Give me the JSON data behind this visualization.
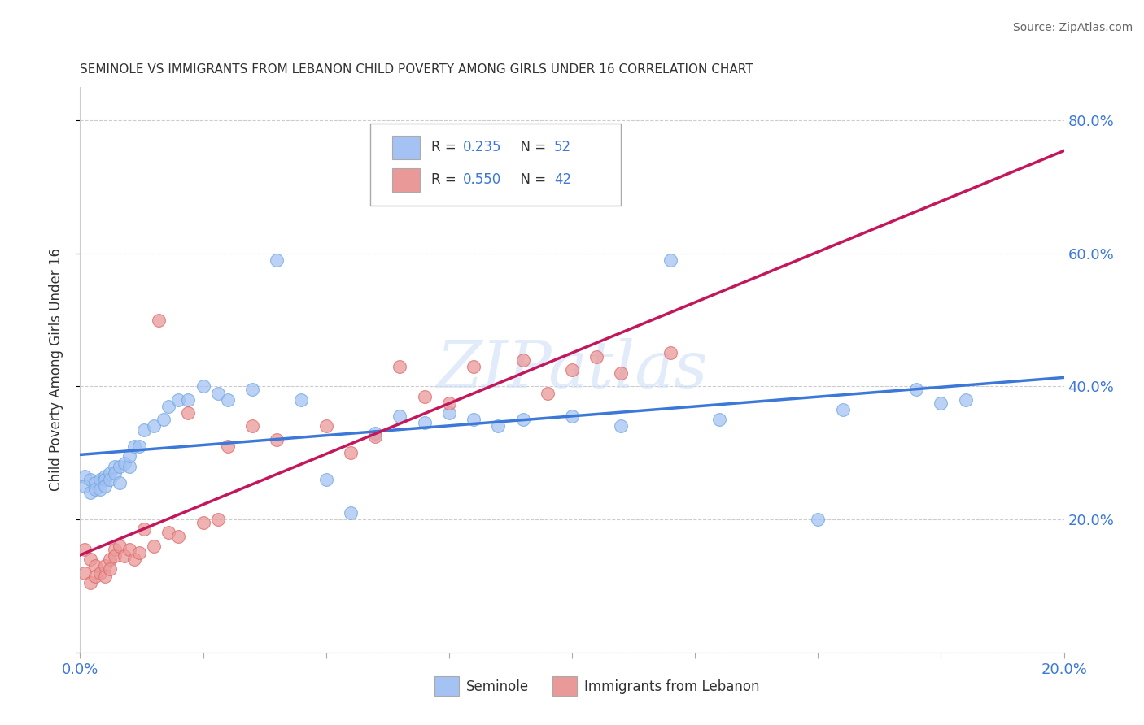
{
  "title": "SEMINOLE VS IMMIGRANTS FROM LEBANON CHILD POVERTY AMONG GIRLS UNDER 16 CORRELATION CHART",
  "source": "Source: ZipAtlas.com",
  "ylabel": "Child Poverty Among Girls Under 16",
  "xlim": [
    0.0,
    0.2
  ],
  "ylim": [
    0.0,
    0.85
  ],
  "xtick_positions": [
    0.0,
    0.025,
    0.05,
    0.075,
    0.1,
    0.125,
    0.15,
    0.175,
    0.2
  ],
  "xtick_labels": [
    "0.0%",
    "",
    "",
    "",
    "",
    "",
    "",
    "",
    "20.0%"
  ],
  "ytick_positions": [
    0.0,
    0.2,
    0.4,
    0.6,
    0.8
  ],
  "ytick_labels": [
    "",
    "20.0%",
    "40.0%",
    "60.0%",
    "80.0%"
  ],
  "seminole_color": "#a4c2f4",
  "lebanon_color": "#ea9999",
  "trendline_seminole_color": "#3c78d8",
  "trendline_lebanon_color": "#c2185b",
  "watermark_text": "ZIPatlas",
  "seminole_x": [
    0.001,
    0.001,
    0.002,
    0.002,
    0.003,
    0.003,
    0.004,
    0.004,
    0.005,
    0.005,
    0.005,
    0.006,
    0.006,
    0.007,
    0.007,
    0.008,
    0.008,
    0.009,
    0.01,
    0.01,
    0.011,
    0.012,
    0.013,
    0.015,
    0.017,
    0.018,
    0.02,
    0.022,
    0.025,
    0.028,
    0.03,
    0.035,
    0.04,
    0.045,
    0.05,
    0.055,
    0.06,
    0.065,
    0.07,
    0.075,
    0.08,
    0.085,
    0.09,
    0.1,
    0.11,
    0.12,
    0.13,
    0.15,
    0.155,
    0.17,
    0.175,
    0.18
  ],
  "seminole_y": [
    0.265,
    0.25,
    0.26,
    0.24,
    0.255,
    0.245,
    0.26,
    0.245,
    0.265,
    0.26,
    0.25,
    0.27,
    0.26,
    0.28,
    0.27,
    0.28,
    0.255,
    0.285,
    0.28,
    0.295,
    0.31,
    0.31,
    0.335,
    0.34,
    0.35,
    0.37,
    0.38,
    0.38,
    0.4,
    0.39,
    0.38,
    0.395,
    0.59,
    0.38,
    0.26,
    0.21,
    0.33,
    0.355,
    0.345,
    0.36,
    0.35,
    0.34,
    0.35,
    0.355,
    0.34,
    0.59,
    0.35,
    0.2,
    0.365,
    0.395,
    0.375,
    0.38
  ],
  "lebanon_x": [
    0.001,
    0.001,
    0.002,
    0.002,
    0.003,
    0.003,
    0.004,
    0.005,
    0.005,
    0.006,
    0.006,
    0.007,
    0.007,
    0.008,
    0.009,
    0.01,
    0.011,
    0.012,
    0.013,
    0.015,
    0.016,
    0.018,
    0.02,
    0.022,
    0.025,
    0.028,
    0.03,
    0.035,
    0.04,
    0.05,
    0.055,
    0.06,
    0.065,
    0.07,
    0.075,
    0.08,
    0.09,
    0.095,
    0.1,
    0.105,
    0.11,
    0.12
  ],
  "lebanon_y": [
    0.155,
    0.12,
    0.14,
    0.105,
    0.13,
    0.115,
    0.12,
    0.13,
    0.115,
    0.14,
    0.125,
    0.155,
    0.145,
    0.16,
    0.145,
    0.155,
    0.14,
    0.15,
    0.185,
    0.16,
    0.5,
    0.18,
    0.175,
    0.36,
    0.195,
    0.2,
    0.31,
    0.34,
    0.32,
    0.34,
    0.3,
    0.325,
    0.43,
    0.385,
    0.375,
    0.43,
    0.44,
    0.39,
    0.425,
    0.445,
    0.42,
    0.45
  ]
}
